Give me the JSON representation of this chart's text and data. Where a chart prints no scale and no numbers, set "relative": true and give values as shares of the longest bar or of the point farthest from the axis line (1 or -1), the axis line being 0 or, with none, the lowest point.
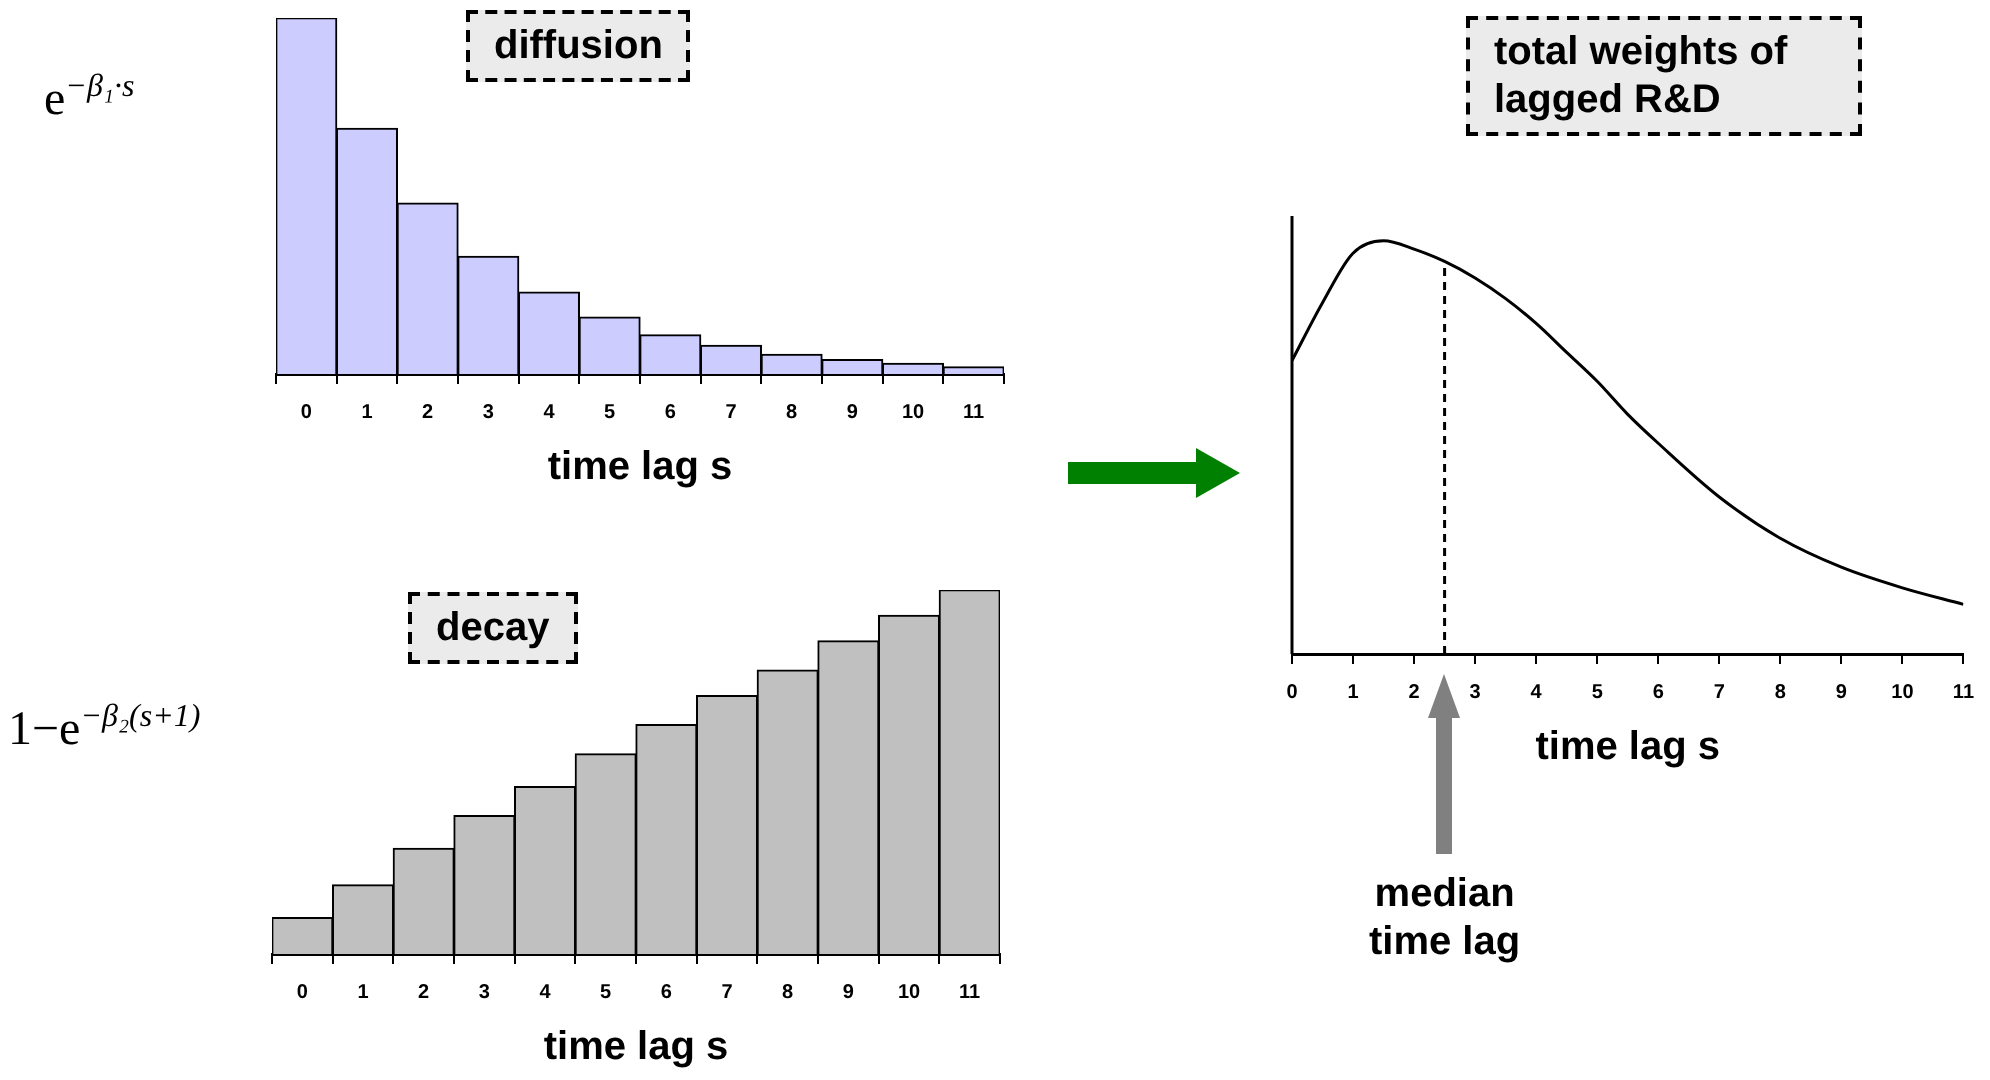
{
  "chart_data": [
    {
      "type": "bar",
      "title": "diffusion",
      "xlabel": "time lag s",
      "ylabel": "e$^{−β₁·s}$",
      "categories": [
        "0",
        "1",
        "2",
        "3",
        "4",
        "5",
        "6",
        "7",
        "8",
        "9",
        "10",
        "11"
      ],
      "values": [
        1,
        0.69,
        0.48,
        0.33,
        0.23,
        0.16,
        0.11,
        0.08,
        0.055,
        0.04,
        0.03,
        0.02
      ],
      "color": "#ccccff",
      "relative": true
    },
    {
      "type": "bar",
      "title": "decay",
      "xlabel": "time lag s",
      "ylabel": "1−e$^{−β₂(s+1)}$",
      "categories": [
        "0",
        "1",
        "2",
        "3",
        "4",
        "5",
        "6",
        "7",
        "8",
        "9",
        "10",
        "11"
      ],
      "values": [
        0.1,
        0.19,
        0.29,
        0.38,
        0.46,
        0.55,
        0.63,
        0.71,
        0.78,
        0.86,
        0.93,
        1
      ],
      "color": "#c0c0c0",
      "relative": true
    },
    {
      "type": "line",
      "title": "total weights of lagged R&D",
      "xlabel": "time lag s",
      "x": [
        0,
        0.5,
        1,
        1.5,
        2,
        2.5,
        3,
        3.5,
        4,
        4.5,
        5,
        5.5,
        6,
        7,
        8,
        9,
        10,
        11
      ],
      "values": [
        0.71,
        0.85,
        0.97,
        1,
        0.98,
        0.95,
        0.91,
        0.86,
        0.8,
        0.73,
        0.66,
        0.58,
        0.51,
        0.38,
        0.28,
        0.21,
        0.16,
        0.12
      ],
      "color": "#000000",
      "relative": true,
      "xlim": [
        0,
        11
      ],
      "xticks": [
        0,
        1,
        2,
        3,
        4,
        5,
        6,
        7,
        8,
        9,
        10,
        11
      ],
      "ref_lines": [
        {
          "axis": "x",
          "value": 2.5,
          "line_style": "dashed",
          "label": "median time lag"
        }
      ]
    }
  ]
}
